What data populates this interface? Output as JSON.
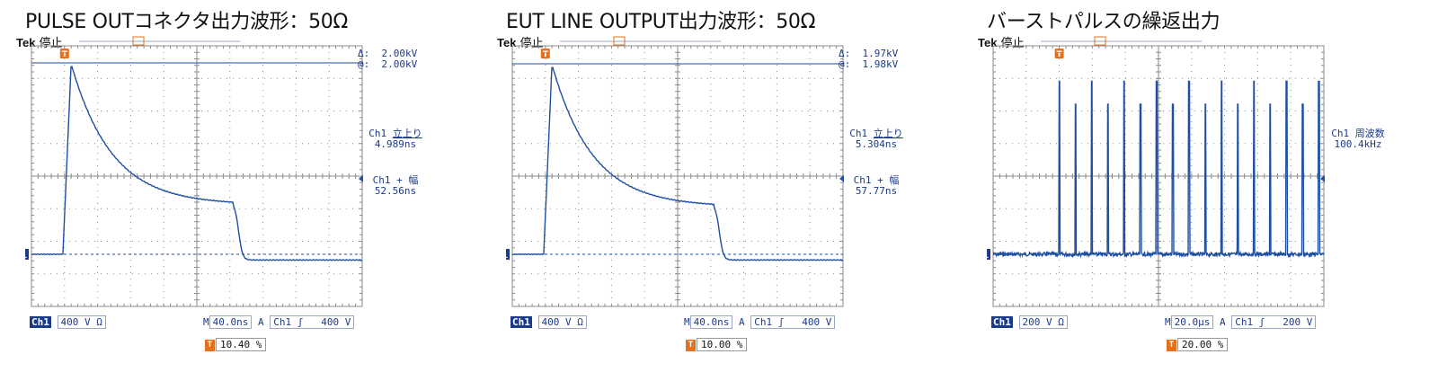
{
  "colors": {
    "grid": "#8a8a8a",
    "trace": "#1f4fa0",
    "text": "#1a3a8a",
    "trigger": "#e8701a",
    "ch1bg": "#1a3a8a"
  },
  "panels": [
    {
      "title": "PULSE OUTコネクタ出力波形：50Ω",
      "tek": "Tek",
      "state": "停止",
      "delta": {
        "label_delta": "Δ:",
        "value_delta": "2.00kV",
        "label_at": "@:",
        "value_at": "2.00kV"
      },
      "meas1": {
        "name": "Ch1",
        "label": "立上り",
        "value": "4.989ns"
      },
      "meas2": {
        "name": "Ch1 + 幅",
        "value": "52.56ns"
      },
      "bottom": {
        "ch": "Ch1",
        "volt": "400 V",
        "ohm": "Ω",
        "m": "M",
        "time": "40.0ns",
        "a": "A",
        "trig_ch": "Ch1",
        "edge": "ʃ",
        "level": "400 V"
      },
      "trigger_pos": "10.40 %",
      "waveform": "pulse1"
    },
    {
      "title": "EUT LINE OUTPUT出力波形：50Ω",
      "tek": "Tek",
      "state": "停止",
      "delta": {
        "label_delta": "Δ:",
        "value_delta": "1.97kV",
        "label_at": "@:",
        "value_at": "1.98kV"
      },
      "meas1": {
        "name": "Ch1",
        "label": "立上り",
        "value": "5.304ns"
      },
      "meas2": {
        "name": "Ch1 + 幅",
        "value": "57.77ns"
      },
      "bottom": {
        "ch": "Ch1",
        "volt": "400 V",
        "ohm": "Ω",
        "m": "M",
        "time": "40.0ns",
        "a": "A",
        "trig_ch": "Ch1",
        "edge": "ʃ",
        "level": "400 V"
      },
      "trigger_pos": "10.00 %",
      "waveform": "pulse2"
    },
    {
      "title": "バーストパルスの繰返出力",
      "tek": "Tek",
      "state": "停止",
      "meas1": {
        "name": "Ch1",
        "label": "周波数",
        "value": "100.4kHz"
      },
      "bottom": {
        "ch": "Ch1",
        "volt": "200 V",
        "ohm": "Ω",
        "m": "M",
        "time": "20.0µs",
        "a": "A",
        "trig_ch": "Ch1",
        "edge": "ʃ",
        "level": "200 V"
      },
      "trigger_pos": "20.00 %",
      "waveform": "burst"
    }
  ]
}
